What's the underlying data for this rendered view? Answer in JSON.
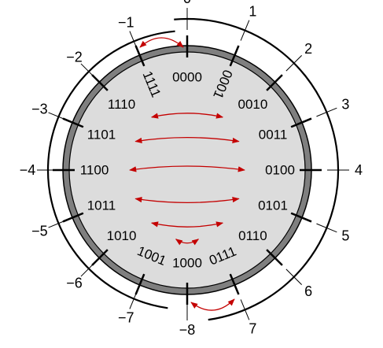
{
  "outer_numbers": [
    "0",
    "1",
    "2",
    "3",
    "4",
    "5",
    "6",
    "7",
    "-8",
    "-7",
    "-6",
    "-5",
    "-4",
    "-3",
    "-2",
    "-1"
  ],
  "inner_codes": [
    "0000",
    "0001",
    "0010",
    "0011",
    "0100",
    "0101",
    "0110",
    "0111",
    "1000",
    "1001",
    "1010",
    "1011",
    "1100",
    "1101",
    "1110",
    "1111"
  ],
  "arrow_pairs": [
    [
      "-1",
      "0"
    ],
    [
      "1110",
      "0010"
    ],
    [
      "1101",
      "0011"
    ],
    [
      "1100",
      "0100"
    ],
    [
      "1011",
      "0101"
    ],
    [
      "1010",
      "0110"
    ],
    [
      "1001",
      "0111"
    ],
    [
      "-8",
      "7"
    ]
  ],
  "colors": {
    "disk_fill": "#dcdcdc",
    "band": "#7f7f7f",
    "arrow": "#c40000",
    "line": "#000000"
  }
}
